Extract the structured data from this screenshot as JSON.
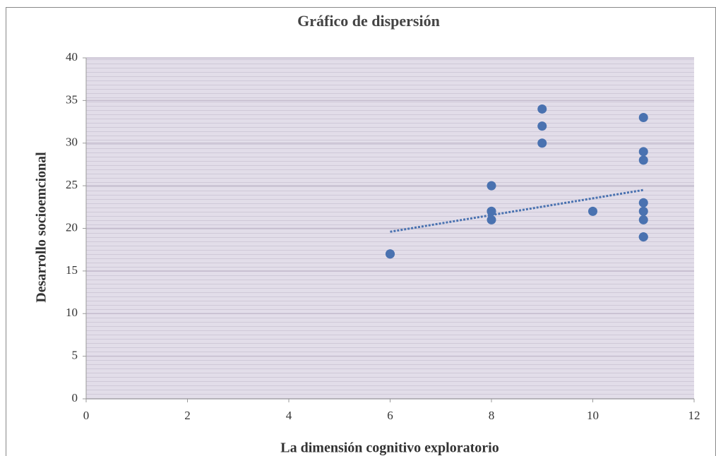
{
  "chart_data": {
    "type": "scatter",
    "title": "Gráfico de dispersión",
    "x_label": "La dimensión cognitivo exploratorio",
    "y_label": "Desarrollo socioemcional",
    "series": [
      {
        "color": "#4a72b0",
        "x": [
          6,
          6,
          8,
          8,
          8,
          8,
          9,
          9,
          9,
          10,
          11,
          11,
          11,
          11,
          11,
          11,
          11,
          11
        ],
        "values": [
          17,
          17,
          25,
          22,
          22,
          21,
          34,
          32,
          30,
          22,
          33,
          29,
          28,
          23,
          22,
          21,
          19,
          19
        ]
      }
    ],
    "trendline": {
      "color": "#4a72b0",
      "x": [
        6,
        11
      ],
      "values": [
        19.6,
        24.5
      ]
    },
    "xlim": [
      0,
      12
    ],
    "xticks": [
      0,
      2,
      4,
      6,
      8,
      10,
      12
    ],
    "ylim": [
      0,
      40
    ],
    "yticks": [
      0,
      5,
      10,
      15,
      20,
      25,
      30,
      35,
      40
    ],
    "grid": true
  }
}
